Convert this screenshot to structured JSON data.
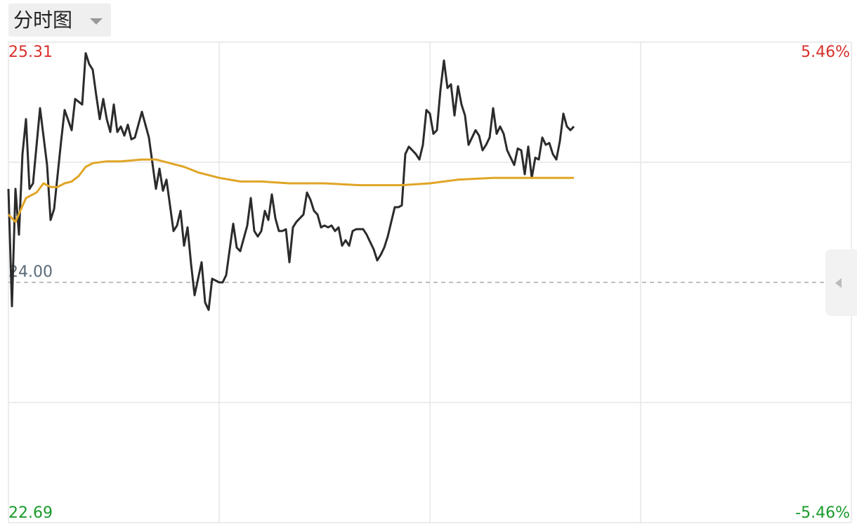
{
  "header": {
    "button": "分时图"
  },
  "chart_data": {
    "type": "line",
    "xlim": [
      0,
      240
    ],
    "ylim": [
      22.69,
      25.31
    ],
    "yticks": [
      22.69,
      {
        "value": 24,
        "label": "24.00"
      },
      25.31
    ],
    "y2lim": [
      -5.46,
      5.46
    ],
    "y2ticks": [
      {
        "value": -5.46,
        "label": "-5.46%"
      },
      {
        "value": 5.46,
        "label": "5.46%"
      }
    ],
    "grid": true,
    "series": [
      {
        "color": "#2b2b2b",
        "x": [
          0,
          1,
          2,
          3,
          4,
          5,
          6,
          7,
          9,
          11,
          12,
          13,
          15,
          16,
          18,
          19,
          21,
          22,
          23,
          24,
          25,
          26,
          27,
          28,
          29,
          30,
          31,
          32,
          33,
          34,
          35,
          36,
          38,
          40,
          42,
          43,
          44,
          45,
          47,
          48,
          49,
          50,
          51,
          52,
          53,
          55,
          56,
          57,
          58,
          60,
          61,
          62,
          64,
          65,
          66,
          67,
          68,
          69,
          70,
          71,
          72,
          73,
          74,
          75,
          76,
          77,
          78,
          79,
          80,
          81,
          82,
          83,
          84,
          85,
          86,
          87,
          88,
          89,
          90,
          91,
          92,
          93,
          94,
          95,
          96,
          97,
          98,
          99,
          101,
          102,
          103,
          104,
          105,
          106,
          107,
          108,
          109,
          110,
          111,
          112,
          113,
          114,
          115,
          116,
          117,
          118,
          119,
          120,
          121,
          122,
          123,
          124,
          125,
          126,
          127,
          128,
          129,
          130,
          131,
          132,
          133,
          134,
          135,
          136,
          137,
          138,
          139,
          140,
          141,
          142,
          143,
          144,
          145,
          146,
          147,
          148,
          149,
          150,
          151,
          152,
          153,
          154,
          155,
          156,
          157,
          158,
          159,
          160,
          161
        ],
        "values": [
          24.51,
          23.87,
          24.51,
          24.26,
          24.7,
          24.89,
          24.51,
          24.54,
          24.95,
          24.64,
          24.34,
          24.4,
          24.77,
          24.94,
          24.83,
          25.0,
          24.97,
          25.25,
          25.19,
          25.16,
          25.02,
          24.89,
          25.0,
          24.89,
          24.82,
          24.97,
          24.82,
          24.85,
          24.8,
          24.86,
          24.78,
          24.79,
          24.93,
          24.79,
          24.51,
          24.62,
          24.5,
          24.56,
          24.28,
          24.31,
          24.39,
          24.2,
          24.3,
          24.1,
          23.93,
          24.11,
          23.89,
          23.85,
          24.02,
          24.0,
          24.0,
          24.04,
          24.32,
          24.19,
          24.17,
          24.24,
          24.31,
          24.46,
          24.28,
          24.25,
          24.28,
          24.39,
          24.34,
          24.48,
          24.35,
          24.28,
          24.28,
          24.29,
          24.11,
          24.3,
          24.33,
          24.35,
          24.37,
          24.49,
          24.45,
          24.39,
          24.37,
          24.3,
          24.31,
          24.3,
          24.31,
          24.28,
          24.3,
          24.2,
          24.23,
          24.2,
          24.28,
          24.29,
          24.29,
          24.26,
          24.22,
          24.18,
          24.12,
          24.15,
          24.19,
          24.25,
          24.33,
          24.41,
          24.41,
          24.42,
          24.7,
          24.74,
          24.72,
          24.7,
          24.67,
          24.75,
          24.94,
          24.92,
          24.81,
          24.83,
          25.05,
          25.21,
          25.06,
          25.08,
          24.91,
          25.07,
          24.97,
          24.91,
          24.75,
          24.79,
          24.83,
          24.8,
          24.72,
          24.75,
          24.79,
          24.95,
          24.81,
          24.85,
          24.81,
          24.72,
          24.68,
          24.64,
          24.73,
          24.72,
          24.59,
          24.74,
          24.57,
          24.68,
          24.67,
          24.79,
          24.75,
          24.76,
          24.7,
          24.67,
          24.77,
          24.92,
          24.85,
          24.83,
          24.85
        ]
      },
      {
        "color": "#e0a526",
        "x": [
          0,
          2,
          5,
          8,
          10,
          12,
          14,
          16,
          18,
          20,
          22,
          24,
          28,
          32,
          38,
          42,
          46,
          50,
          54,
          60,
          66,
          72,
          80,
          90,
          100,
          112,
          120,
          124,
          128,
          138,
          148,
          161
        ],
        "values": [
          24.37,
          24.33,
          24.46,
          24.49,
          24.54,
          24.52,
          24.52,
          24.54,
          24.55,
          24.58,
          24.63,
          24.65,
          24.66,
          24.66,
          24.67,
          24.67,
          24.65,
          24.63,
          24.6,
          24.57,
          24.55,
          24.55,
          24.54,
          24.54,
          24.53,
          24.53,
          24.54,
          24.55,
          24.56,
          24.57,
          24.57,
          24.57
        ]
      }
    ]
  }
}
